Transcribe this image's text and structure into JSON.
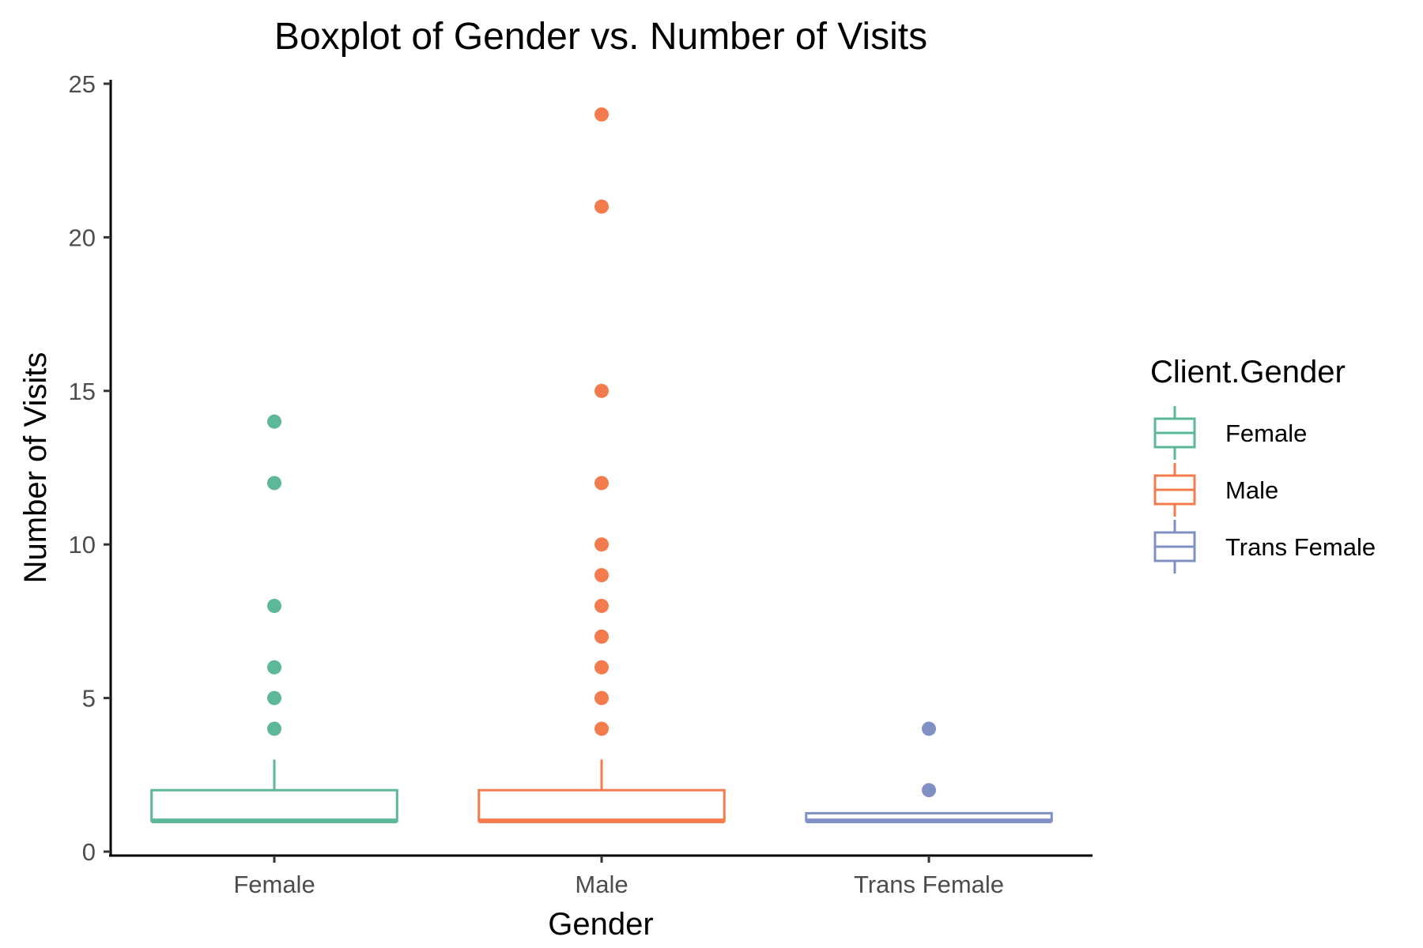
{
  "chart_data": {
    "type": "boxplot",
    "title": "Boxplot of Gender vs. Number of Visits",
    "xlabel": "Gender",
    "ylabel": "Number of Visits",
    "ylim": [
      0,
      25
    ],
    "yticks": [
      0,
      5,
      10,
      15,
      20,
      25
    ],
    "categories": [
      "Female",
      "Male",
      "Trans Female"
    ],
    "grid": false,
    "legend": {
      "title": "Client.Gender",
      "position": "right",
      "entries": [
        "Female",
        "Male",
        "Trans Female"
      ]
    },
    "series": [
      {
        "category": "Female",
        "color": "#5cb896",
        "whisker_low": 1,
        "q1": 1,
        "median": 1,
        "q3": 2,
        "whisker_high": 3,
        "outliers": [
          4,
          5,
          6,
          8,
          12,
          14
        ]
      },
      {
        "category": "Male",
        "color": "#f47b4e",
        "whisker_low": 1,
        "q1": 1,
        "median": 1,
        "q3": 2,
        "whisker_high": 3,
        "outliers": [
          4,
          5,
          6,
          7,
          8,
          9,
          10,
          12,
          15,
          21,
          24
        ]
      },
      {
        "category": "Trans Female",
        "color": "#8090c4",
        "whisker_low": 1,
        "q1": 1,
        "median": 1,
        "q3": 1.25,
        "whisker_high": 1.25,
        "outliers": [
          2,
          4
        ]
      }
    ]
  }
}
